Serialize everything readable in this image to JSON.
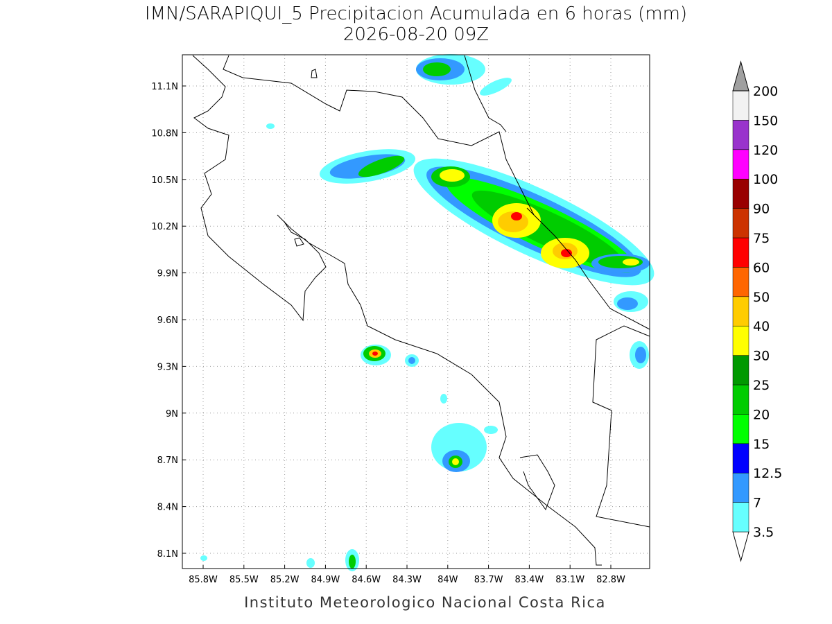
{
  "header": {
    "title": "IMN/SARAPIQUI_5 Precipitacion Acumulada en 6 horas (mm)",
    "subtitle": "2026-08-20 09Z"
  },
  "map": {
    "lat_labels": [
      "11.1N",
      "10.8N",
      "10.5N",
      "10.2N",
      "9.9N",
      "9.6N",
      "9.3N",
      "9N",
      "8.7N",
      "8.4N",
      "8.1N"
    ],
    "lon_labels": [
      "85.8W",
      "85.5W",
      "85.2W",
      "84.9W",
      "84.6W",
      "84.3W",
      "84W",
      "83.7W",
      "83.4W",
      "83.1W",
      "82.8W"
    ]
  },
  "legend": {
    "levels": [
      "3.5",
      "7",
      "12.5",
      "15",
      "20",
      "25",
      "30",
      "40",
      "50",
      "60",
      "75",
      "90",
      "100",
      "120",
      "150",
      "200"
    ],
    "colors": [
      "#66ffff",
      "#3399ff",
      "#0000ff",
      "#00ff00",
      "#00cc00",
      "#009900",
      "#ffff00",
      "#ffcc00",
      "#ff6600",
      "#ff0000",
      "#cc3300",
      "#990000",
      "#ff00ff",
      "#9933cc",
      "#f2f2f2"
    ],
    "below_color": "#ffffff",
    "above_color": "#a0a0a0"
  },
  "footer": {
    "credit": "Instituto Meteorologico Nacional Costa Rica"
  }
}
